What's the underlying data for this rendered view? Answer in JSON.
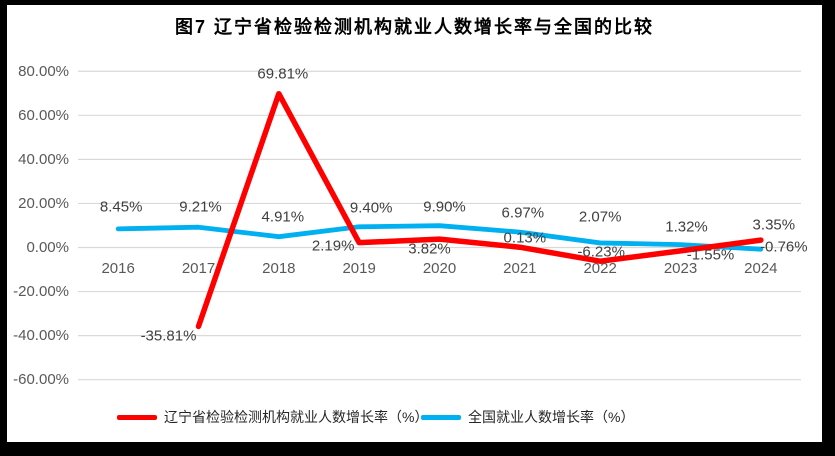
{
  "frame": {
    "border_color": "#000000",
    "background": "#FFFFFF"
  },
  "chart_data": {
    "type": "line",
    "title": "图7 辽宁省检验检测机构就业人数增长率与全国的比较",
    "categories": [
      "2016",
      "2017",
      "2018",
      "2019",
      "2020",
      "2021",
      "2022",
      "2023",
      "2024"
    ],
    "series": [
      {
        "name": "辽宁省检验检测机构就业人数增长率（%）",
        "color": "#FF0000",
        "values": [
          null,
          -35.81,
          69.81,
          2.19,
          3.82,
          0.13,
          -6.23,
          -1.55,
          3.35
        ]
      },
      {
        "name": "全国就业人数增长率（%）",
        "color": "#00B0F0",
        "values": [
          8.45,
          9.21,
          4.91,
          9.4,
          9.9,
          6.97,
          2.07,
          1.32,
          -0.76
        ]
      }
    ],
    "y_axis": {
      "min": -60,
      "max": 80,
      "step": 20,
      "tick_labels": [
        "80.00%",
        "60.00%",
        "40.00%",
        "20.00%",
        "0.00%",
        "-20.00%",
        "-40.00%",
        "-60.00%"
      ]
    },
    "data_label_format": "0.00%",
    "grid": true,
    "legend_position": "bottom",
    "colors": {
      "gridline": "#D9D9D9",
      "axis_text": "#595959",
      "data_label_text": "#404040",
      "title_text": "#000000"
    }
  }
}
